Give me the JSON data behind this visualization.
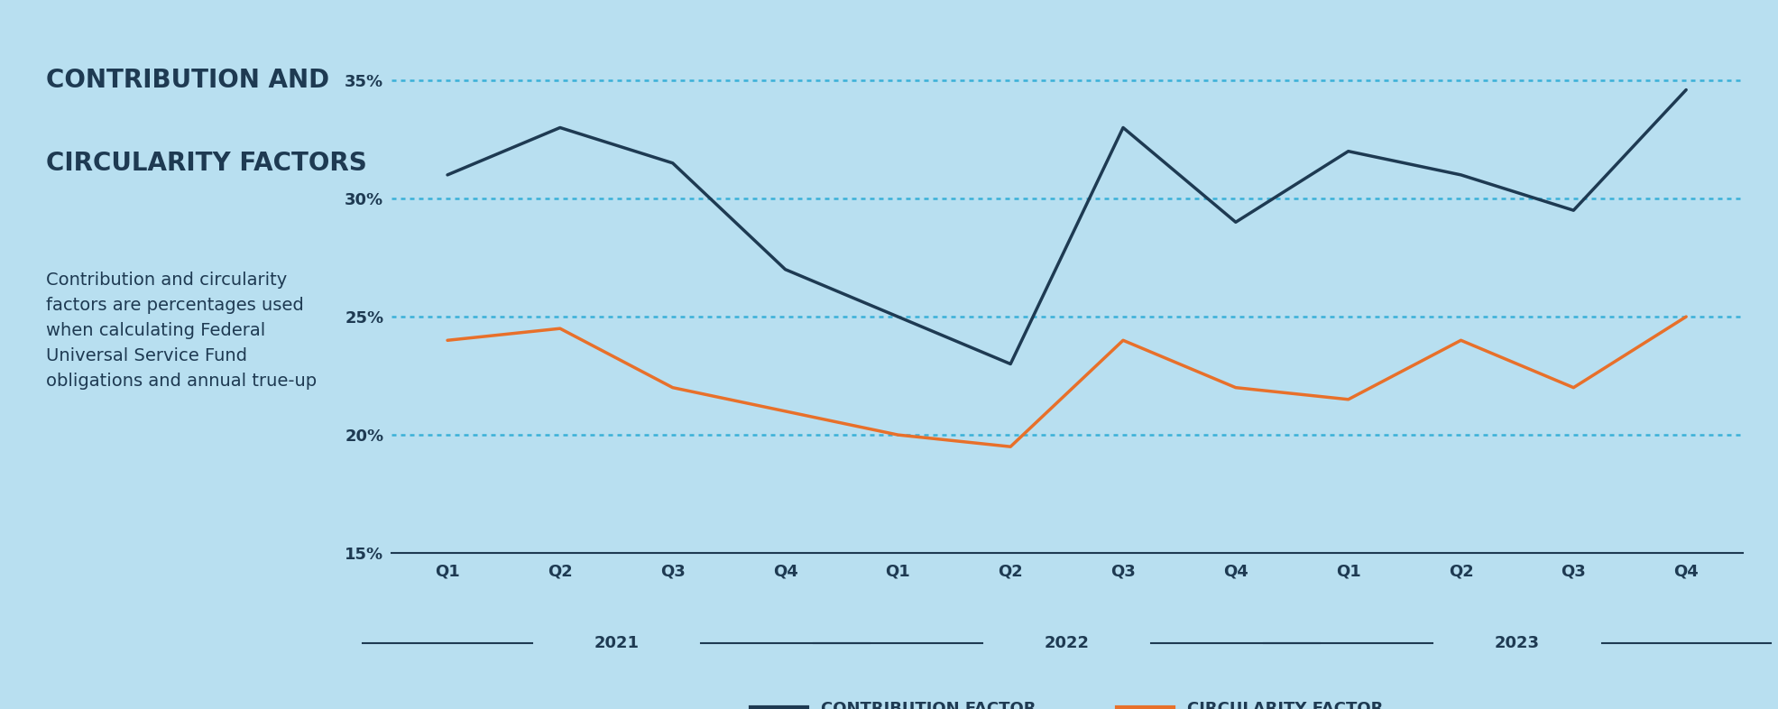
{
  "contribution_factor": [
    31.0,
    33.0,
    31.5,
    27.0,
    25.0,
    23.0,
    33.0,
    29.0,
    32.0,
    31.0,
    29.5,
    34.6
  ],
  "circularity_factor": [
    24.0,
    24.5,
    22.0,
    21.0,
    20.0,
    19.5,
    24.0,
    22.0,
    21.5,
    24.0,
    22.0,
    25.0
  ],
  "x_labels": [
    "Q1",
    "Q2",
    "Q3",
    "Q4",
    "Q1",
    "Q2",
    "Q3",
    "Q4",
    "Q1",
    "Q2",
    "Q3",
    "Q4"
  ],
  "year_labels": [
    "2021",
    "2022",
    "2023"
  ],
  "contribution_color": "#1e3a52",
  "circularity_color": "#e8702a",
  "background_color": "#b8dff0",
  "grid_color": "#3ab0d8",
  "title_line1": "CONTRIBUTION AND",
  "title_line2": "CIRCULARITY FACTORS",
  "subtitle": "Contribution and circularity\nfactors are percentages used\nwhen calculating Federal\nUniversal Service Fund\nobligations and annual true-up",
  "ylim": [
    15,
    36
  ],
  "yticks": [
    15,
    20,
    25,
    30,
    35
  ],
  "ytick_labels": [
    "15%",
    "20%",
    "25%",
    "30%",
    "35%"
  ],
  "legend_contribution": "CONTRIBUTION FACTOR",
  "legend_circularity": "CIRCULARITY FACTOR",
  "title_fontsize": 20,
  "subtitle_fontsize": 14,
  "tick_fontsize": 13,
  "legend_fontsize": 13
}
